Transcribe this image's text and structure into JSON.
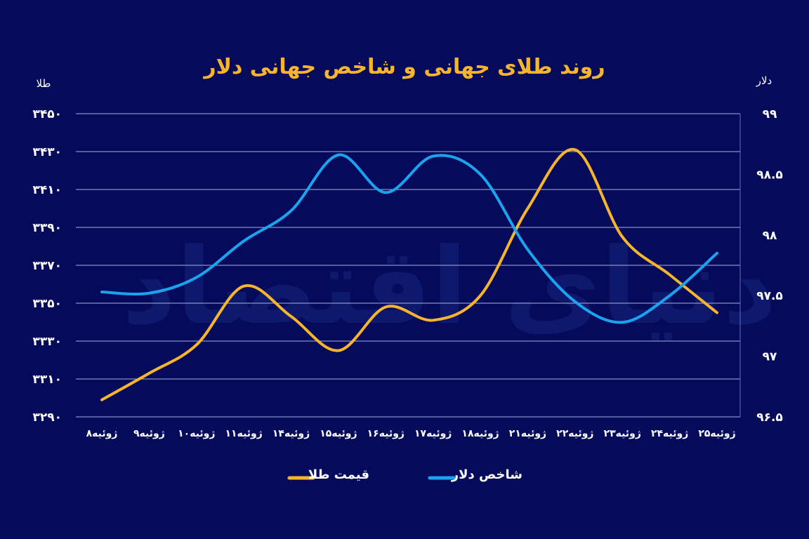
{
  "chart_data": {
    "type": "line",
    "title": "روند طلای جهانی و شاخص جهانی دلار",
    "watermark": "دنیای اقتصاد",
    "categories": [
      "۸ژوئیه",
      "۹ژوئیه",
      "۱۰ژوئیه",
      "۱۱ژوئیه",
      "۱۴ژوئیه",
      "۱۵ژوئیه",
      "۱۶ژوئیه",
      "۱۷ژوئیه",
      "۱۸ژوئیه",
      "۲۱ژوئیه",
      "۲۲ژوئیه",
      "۲۳ژوئیه",
      "۲۴ژوئیه",
      "۲۵ژوئیه"
    ],
    "y_left": {
      "label": "طلا",
      "min": 3290,
      "max": 3450,
      "ticks": [
        3290,
        3310,
        3330,
        3350,
        3370,
        3390,
        3410,
        3430,
        3450
      ],
      "tick_labels": [
        "۳۲۹۰",
        "۳۳۱۰",
        "۳۳۳۰",
        "۳۳۵۰",
        "۳۳۷۰",
        "۳۳۹۰",
        "۳۴۱۰",
        "۳۴۳۰",
        "۳۴۵۰"
      ]
    },
    "y_right": {
      "label": "دلار",
      "min": 96.5,
      "max": 99,
      "ticks": [
        96.5,
        97,
        97.5,
        98,
        98.5,
        99
      ],
      "tick_labels": [
        "۹۶.۵",
        "۹۷",
        "۹۷.۵",
        "۹۸",
        "۹۸.۵",
        "۹۹"
      ]
    },
    "series": [
      {
        "name": "قیمت طلا",
        "axis": "left",
        "color": "#f7b52c",
        "values": [
          3299,
          3313,
          3328,
          3359,
          3343,
          3325,
          3348,
          3341,
          3354,
          3400,
          3431,
          3385,
          3365,
          3345
        ]
      },
      {
        "name": "شاخص دلار",
        "axis": "right",
        "color": "#1aa3ef",
        "values": [
          97.53,
          97.52,
          97.65,
          97.95,
          98.2,
          98.66,
          98.35,
          98.65,
          98.5,
          97.88,
          97.45,
          97.28,
          97.5,
          97.85
        ]
      }
    ],
    "grid": true,
    "legend_position": "bottom"
  }
}
